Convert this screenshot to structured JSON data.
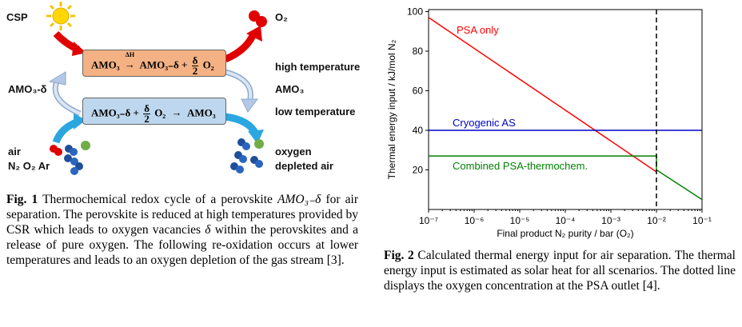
{
  "fig1": {
    "labels": {
      "csp": "CSP",
      "o2_top": "O₂",
      "high_temperature": "high temperature",
      "amo3": "AMO₃",
      "low_temperature": "low temperature",
      "amo3_delta": "AMO₃-δ",
      "air": "air",
      "n2_o2_ar": "N₂ O₂ Ar",
      "oxygen": "oxygen",
      "depleted_air": "depleted air"
    },
    "reduction": {
      "reactant": "AMO₃",
      "arrow_label": "ΔH",
      "product": "AMO₃₋δ +",
      "coeff_num": "δ",
      "coeff_den": "2",
      "o2": "O₂"
    },
    "oxidation": {
      "reactant": "AMO₃₋δ +",
      "coeff_num": "δ",
      "coeff_den": "2",
      "o2": "O₂",
      "arrow": "→",
      "product": "AMO₃"
    },
    "caption": {
      "label": "Fig. 1",
      "text_a": " Thermochemical redox cycle of a perovskite ",
      "formula": "AMO₃₋δ",
      "text_b": " for air separation. The perovskite is reduced at high temperatures provided by CSR which leads to oxygen vacancies ",
      "delta": "δ",
      "text_c": " within the perovskites and a release of pure oxygen. The following re-oxidation occurs at lower temperatures and leads to an oxygen depletion of the gas stream [3]."
    },
    "colors": {
      "reduction_box": "#f4b183",
      "oxidation_box": "#bdd7ee",
      "red_arrow": "#e00000",
      "blue_arrow": "#2aa6e0",
      "sun": "#ffd700"
    }
  },
  "fig2": {
    "caption": {
      "label": "Fig. 2",
      "text": " Calculated thermal energy input for air separation. The thermal energy input is estimated as solar heat for all scenarios. The dotted line displays the oxygen concentration at the PSA outlet [4]."
    }
  },
  "chart_data": {
    "type": "line",
    "xlabel": "Final product N₂ purity / bar (O₂)",
    "ylabel": "Thermal energy input / kJ/mol N₂",
    "xscale": "log",
    "xlim": [
      1e-07,
      0.1
    ],
    "ylim": [
      0,
      101
    ],
    "x_ticks": [
      "10⁻⁷",
      "10⁻⁶",
      "10⁻⁵",
      "10⁻⁴",
      "10⁻³",
      "10⁻²",
      "10⁻¹"
    ],
    "y_ticks": [
      20,
      40,
      60,
      80,
      100
    ],
    "series": [
      {
        "name": "PSA only",
        "color": "#ff0000",
        "x": [
          1e-07,
          0.01
        ],
        "y": [
          97,
          19
        ]
      },
      {
        "name": "Cryogenic AS",
        "color": "#0000cc",
        "x": [
          1e-07,
          0.1
        ],
        "y": [
          40,
          40
        ]
      },
      {
        "name": "Combined PSA-thermochem.",
        "color": "#008000",
        "x": [
          1e-07,
          0.01,
          0.01,
          0.1
        ],
        "y": [
          27,
          27,
          20,
          5
        ]
      }
    ],
    "vline": {
      "x": 0.01,
      "style": "dashed",
      "color": "#000000"
    }
  }
}
